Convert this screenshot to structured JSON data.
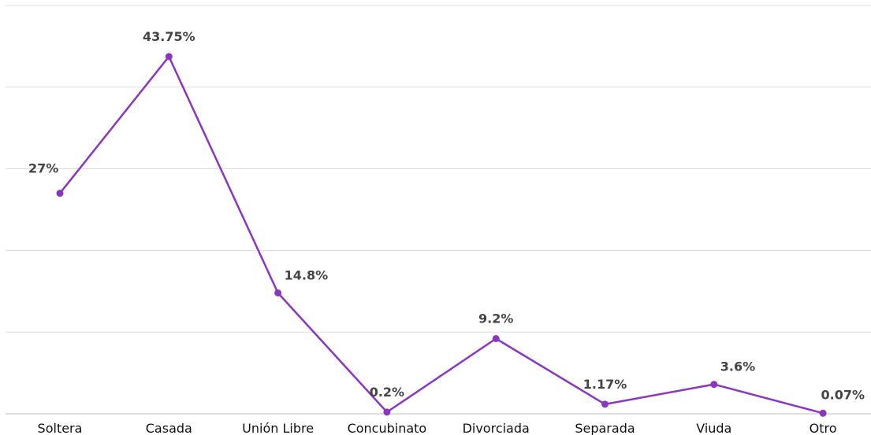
{
  "chart_data": {
    "type": "line",
    "title": "",
    "xlabel": "",
    "ylabel": "",
    "categories": [
      "Soltera",
      "Casada",
      "Unión Libre",
      "Concubinato",
      "Divorciada",
      "Separada",
      "Viuda",
      "Otro"
    ],
    "series": [
      {
        "values": [
          27,
          43.75,
          14.8,
          0.2,
          9.2,
          1.17,
          3.6,
          0.07
        ]
      }
    ],
    "data_labels": [
      "27%",
      "43.75%",
      "14.8%",
      "0.2%",
      "9.2%",
      "1.17%",
      "3.6%",
      "0.07%"
    ],
    "ylim": [
      0,
      50
    ],
    "grid": true,
    "color": "#8a36c0"
  }
}
